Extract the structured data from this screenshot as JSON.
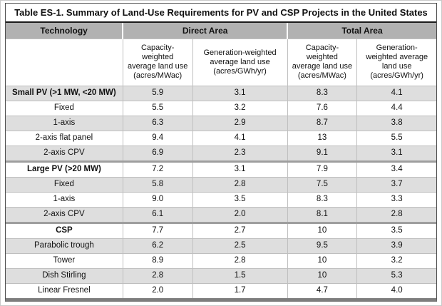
{
  "title": "Table ES-1. Summary of Land-Use Requirements for PV and CSP Projects in the United States",
  "colors": {
    "header_bg": "#b1b1b1",
    "row_alt_bg": "#dedede",
    "grid_line": "#bfbfbf",
    "outer_border": "#4d4d4d",
    "bottom_band": "#7d7d7d",
    "title_rule": "#1a1a1a",
    "text": "#111111"
  },
  "chart_data": {
    "type": "table",
    "title": "Table ES-1. Summary of Land-Use Requirements for PV and CSP Projects in the United States",
    "header": {
      "technology": "Technology",
      "direct_area": "Direct Area",
      "total_area": "Total Area",
      "capacity_label": "Capacity-weighted average land use (acres/MWac)",
      "generation_label": "Generation-weighted average land use (acres/GWh/yr)"
    },
    "column_groups": [
      "Technology",
      "Direct Area",
      "Total Area"
    ],
    "columns": [
      "Technology",
      "Direct Area: Capacity-weighted average land use (acres/MWac)",
      "Direct Area: Generation-weighted average land use (acres/GWh/yr)",
      "Total Area: Capacity-weighted average land use (acres/MWac)",
      "Total Area: Generation-weighted average land use (acres/GWh/yr)"
    ],
    "rows": [
      {
        "technology": "Small PV (>1 MW, <20 MW)",
        "bold": true,
        "section_start": false,
        "values": [
          "5.9",
          "3.1",
          "8.3",
          "4.1"
        ]
      },
      {
        "technology": "Fixed",
        "bold": false,
        "section_start": false,
        "values": [
          "5.5",
          "3.2",
          "7.6",
          "4.4"
        ]
      },
      {
        "technology": "1-axis",
        "bold": false,
        "section_start": false,
        "values": [
          "6.3",
          "2.9",
          "8.7",
          "3.8"
        ]
      },
      {
        "technology": "2-axis flat panel",
        "bold": false,
        "section_start": false,
        "values": [
          "9.4",
          "4.1",
          "13",
          "5.5"
        ]
      },
      {
        "technology": "2-axis CPV",
        "bold": false,
        "section_start": false,
        "values": [
          "6.9",
          "2.3",
          "9.1",
          "3.1"
        ]
      },
      {
        "technology": "Large PV (>20 MW)",
        "bold": true,
        "section_start": true,
        "values": [
          "7.2",
          "3.1",
          "7.9",
          "3.4"
        ]
      },
      {
        "technology": "Fixed",
        "bold": false,
        "section_start": false,
        "values": [
          "5.8",
          "2.8",
          "7.5",
          "3.7"
        ]
      },
      {
        "technology": "1-axis",
        "bold": false,
        "section_start": false,
        "values": [
          "9.0",
          "3.5",
          "8.3",
          "3.3"
        ]
      },
      {
        "technology": "2-axis CPV",
        "bold": false,
        "section_start": false,
        "values": [
          "6.1",
          "2.0",
          "8.1",
          "2.8"
        ]
      },
      {
        "technology": "CSP",
        "bold": true,
        "section_start": true,
        "values": [
          "7.7",
          "2.7",
          "10",
          "3.5"
        ]
      },
      {
        "technology": "Parabolic trough",
        "bold": false,
        "section_start": false,
        "values": [
          "6.2",
          "2.5",
          "9.5",
          "3.9"
        ]
      },
      {
        "technology": "Tower",
        "bold": false,
        "section_start": false,
        "values": [
          "8.9",
          "2.8",
          "10",
          "3.2"
        ]
      },
      {
        "technology": "Dish Stirling",
        "bold": false,
        "section_start": false,
        "values": [
          "2.8",
          "1.5",
          "10",
          "5.3"
        ]
      },
      {
        "technology": "Linear Fresnel",
        "bold": false,
        "section_start": false,
        "values": [
          "2.0",
          "1.7",
          "4.7",
          "4.0"
        ]
      }
    ]
  }
}
